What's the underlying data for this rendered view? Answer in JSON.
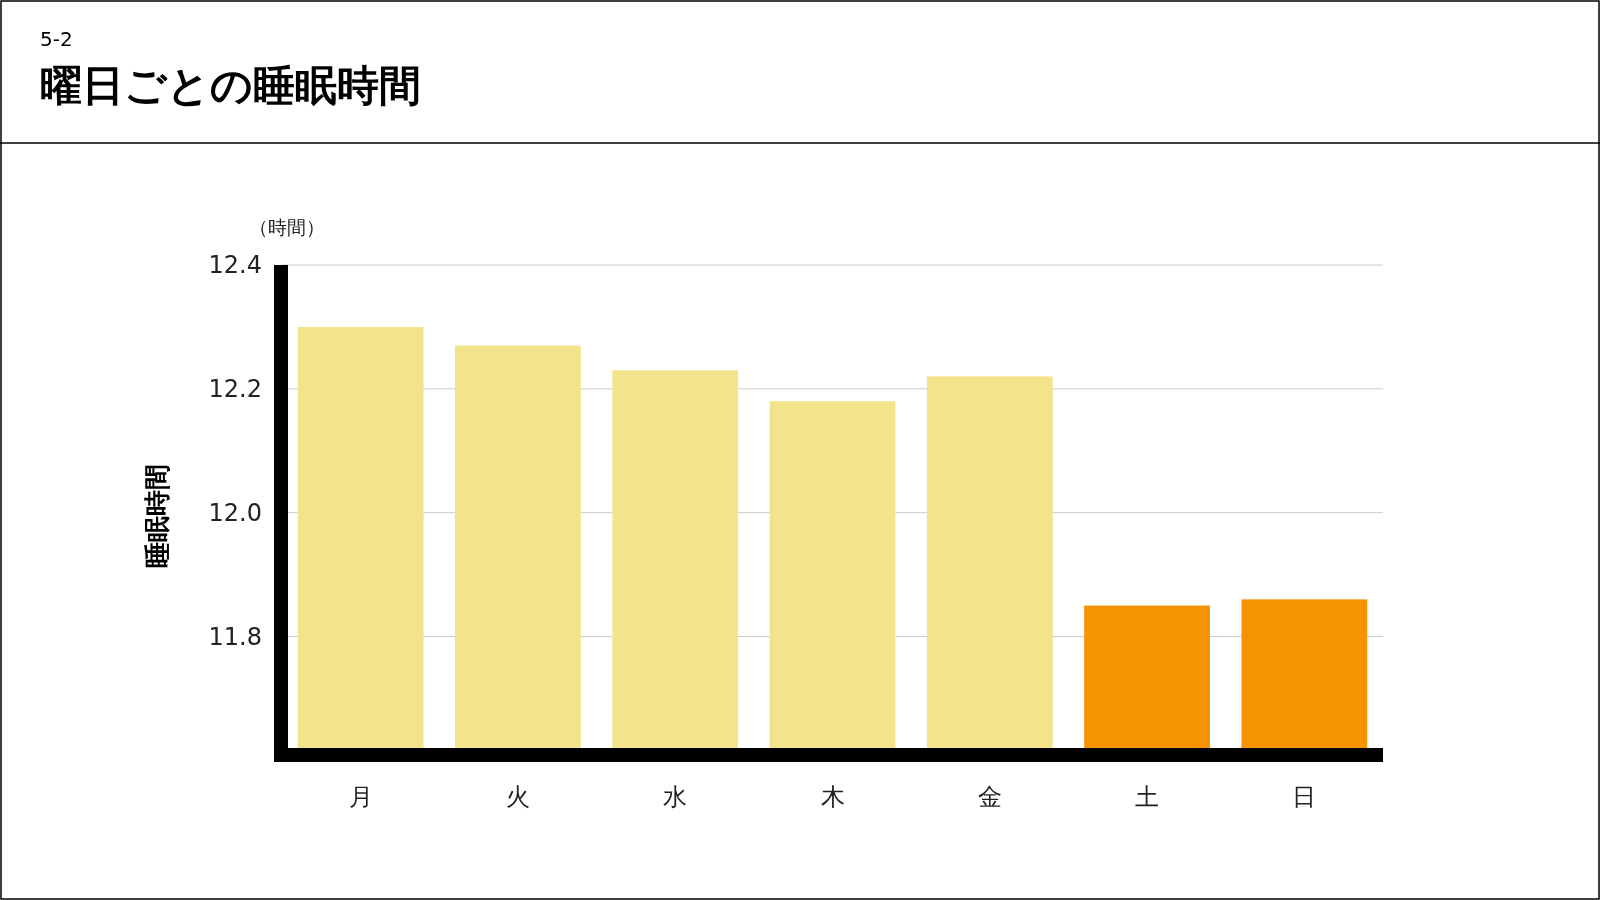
{
  "chart_data": {
    "type": "bar",
    "title": "曜日ごとの睡眠時間",
    "ylabel": "睡眠時間",
    "annotations": [
      "5-2",
      "（時間）"
    ],
    "categories": [
      "月",
      "火",
      "水",
      "木",
      "金",
      "土",
      "日"
    ],
    "values": [
      12.3,
      12.27,
      12.23,
      12.18,
      12.22,
      11.85,
      11.86
    ],
    "colors": [
      "#f3e48b",
      "#f3e48b",
      "#f3e48b",
      "#f3e48b",
      "#f3e48b",
      "#f59302",
      "#f59302"
    ],
    "ylim": [
      11.62,
      12.4
    ],
    "yticks": [
      {
        "value": 11.8,
        "label": "11.8"
      },
      {
        "value": 12.0,
        "label": "12.0"
      },
      {
        "value": 12.2,
        "label": "12.2"
      },
      {
        "value": 12.4,
        "label": "12.4"
      }
    ],
    "grid": "y"
  }
}
